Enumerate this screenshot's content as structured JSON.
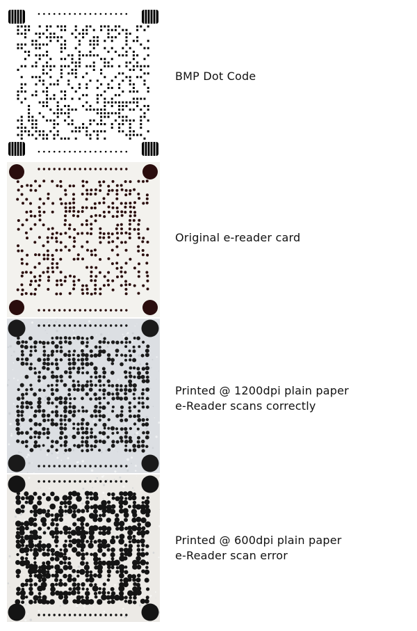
{
  "rows": [
    {
      "style": "bmp",
      "lines": [
        "BMP Dot Code"
      ],
      "background": "#ffffff",
      "dot_color": "#000000",
      "density": 0.42,
      "seed": 11
    },
    {
      "style": "original",
      "lines": [
        "Original e-reader card"
      ],
      "background": "#f3f2ee",
      "dot_color": "#2a0d0d",
      "density": 0.45,
      "seed": 23
    },
    {
      "style": "print1200",
      "lines": [
        "Printed @ 1200dpi plain paper",
        "e-Reader scans correctly"
      ],
      "background": "#dcdfe3",
      "dot_color": "#1a1a1a",
      "density": 0.52,
      "seed": 37
    },
    {
      "style": "print600",
      "lines": [
        "Printed @ 600dpi plain paper",
        "e-Reader scan error"
      ],
      "background": "#eceae6",
      "dot_color": "#141414",
      "density": 0.58,
      "seed": 53
    }
  ]
}
